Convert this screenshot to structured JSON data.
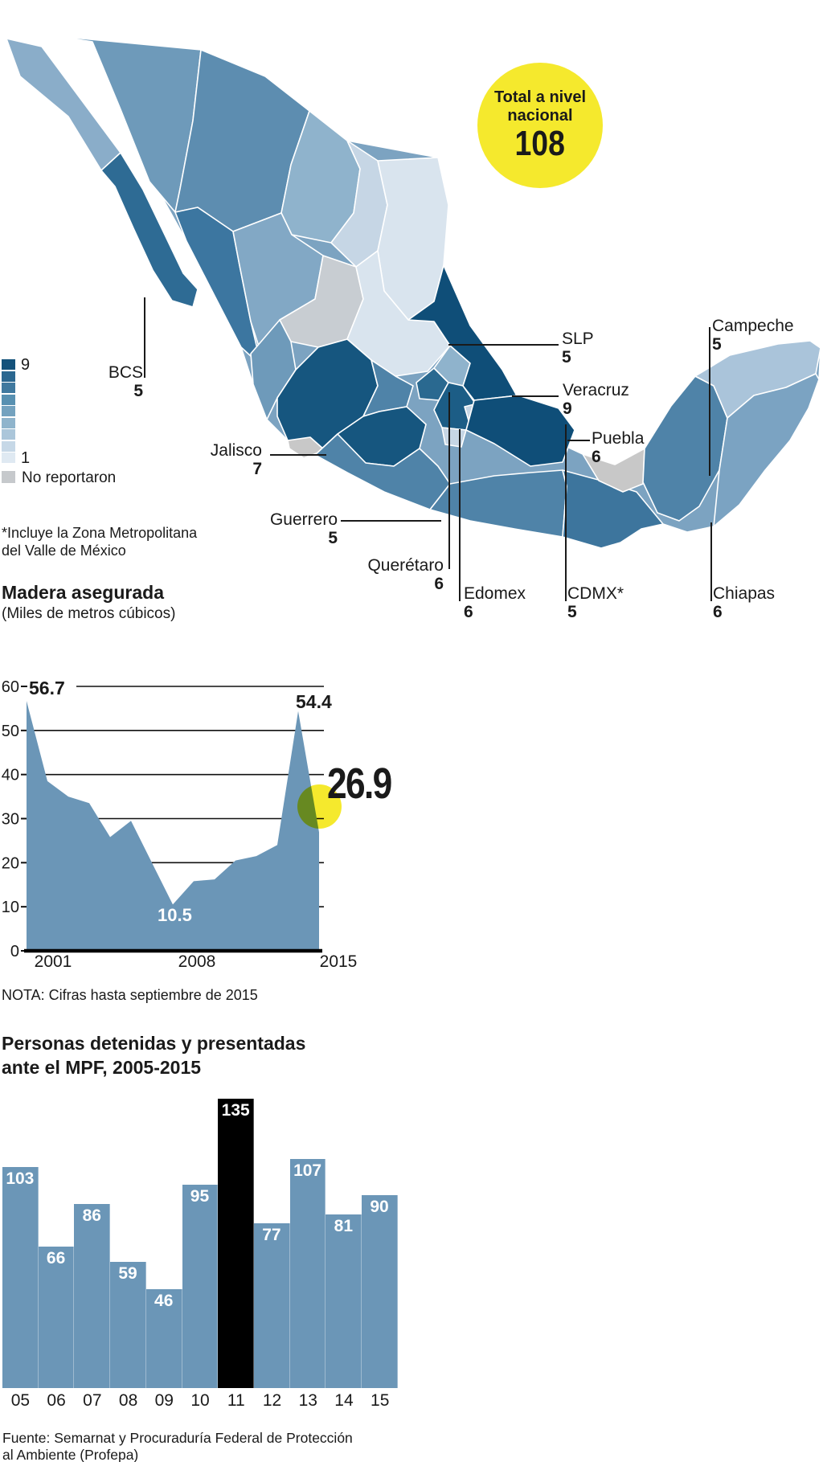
{
  "badge": {
    "line1": "Total a nivel",
    "line2": "nacional",
    "value": "108"
  },
  "map": {
    "legend": {
      "max_label": "9",
      "min_label": "1",
      "colors": [
        "#14527b",
        "#2b6790",
        "#40799f",
        "#5890b1",
        "#74a2bf",
        "#8fb4cc",
        "#abc6da",
        "#c6d8e7",
        "#dfe9f2"
      ],
      "no_data_color": "#c6c9cc",
      "no_data_label": "No reportaron"
    },
    "footnote_line1": "*Incluye la Zona Metropolitana",
    "footnote_line2": "del Valle de México",
    "labels": [
      {
        "name": "BCS",
        "value": "5"
      },
      {
        "name": "Jalisco",
        "value": "7"
      },
      {
        "name": "Guerrero",
        "value": "5"
      },
      {
        "name": "Querétaro",
        "value": "6"
      },
      {
        "name": "Edomex",
        "value": "6"
      },
      {
        "name": "CDMX*",
        "value": "5"
      },
      {
        "name": "SLP",
        "value": "5"
      },
      {
        "name": "Veracruz",
        "value": "9"
      },
      {
        "name": "Puebla",
        "value": "6"
      },
      {
        "name": "Campeche",
        "value": "5"
      },
      {
        "name": "Chiapas",
        "value": "6"
      }
    ],
    "state_colors": {
      "base": "#7ca3c1",
      "bc": "#8aadc9",
      "bcs": "#2e6b94",
      "sonora": "#6e9aba",
      "chihuahua": "#5d8db0",
      "coahuila": "#8fb3cc",
      "nuevo_leon": "#c6d6e5",
      "tamaulipas": "#d9e4ee",
      "sinaloa": "#3c76a0",
      "durango": "#82a8c5",
      "zacatecas": "#c8cdd2",
      "slp": "#d9e4ee",
      "nayarit": "#6e9aba",
      "jalisco": "#16567f",
      "colima": "#c8c8c8",
      "guanajuato": "#4f83a8",
      "michoacan": "#16567f",
      "queretaro": "#2a6990",
      "hidalgo": "#8fb3cc",
      "edomex": "#1c5d86",
      "cdmx": "#c6d6e5",
      "morelos": "#c6d6e5",
      "tlaxcala": "#abc6da",
      "puebla": "#0f4e78",
      "veracruz": "#0f4e78",
      "guerrero": "#4f83a8",
      "oaxaca": "#4f83a8",
      "chiapas": "#3d759d",
      "tabasco": "#c8c8c8",
      "campeche": "#4f83a8",
      "yucatan": "#aac4da",
      "qroo": "#7ba3c2"
    }
  },
  "area_title": "Madera asegurada",
  "area_subtitle": "(Miles de metros cúbicos)",
  "nota": "NOTA: Cifras hasta septiembre de 2015",
  "bar_title_line1": "Personas detenidas y presentadas",
  "bar_title_line2": "ante el MPF, 2005-2015",
  "fuente_line1": "Fuente: Semarnat y Procuraduría Federal de Protección",
  "fuente_line2": "al Ambiente (Profepa)",
  "annotations": {
    "start": "56.7",
    "peak": "54.4",
    "min": "10.5",
    "last": "26.9"
  },
  "colors": {
    "steel_blue": "#6b96b7",
    "yellow": "#f5e92d",
    "black": "#000000",
    "ink": "#1a1a1a"
  },
  "chart_data": [
    {
      "type": "choropleth-map",
      "title": "Total a nivel nacional",
      "total": 108,
      "legend_range": [
        1,
        9
      ],
      "no_data": "No reportaron",
      "labeled_states": [
        {
          "state": "BCS",
          "value": 5
        },
        {
          "state": "Jalisco",
          "value": 7
        },
        {
          "state": "Guerrero",
          "value": 5
        },
        {
          "state": "Querétaro",
          "value": 6
        },
        {
          "state": "Edomex",
          "value": 6
        },
        {
          "state": "CDMX*",
          "value": 5
        },
        {
          "state": "SLP",
          "value": 5
        },
        {
          "state": "Veracruz",
          "value": 9
        },
        {
          "state": "Puebla",
          "value": 6
        },
        {
          "state": "Campeche",
          "value": 5
        },
        {
          "state": "Chiapas",
          "value": 6
        }
      ]
    },
    {
      "type": "area",
      "title": "Madera asegurada (Miles de metros cúbicos)",
      "x": [
        2001,
        2002,
        2003,
        2004,
        2005,
        2006,
        2007,
        2008,
        2009,
        2010,
        2011,
        2012,
        2013,
        2014,
        2015
      ],
      "values": [
        56.7,
        38.5,
        35,
        33.5,
        25.8,
        29.5,
        20,
        10.5,
        15.8,
        16.2,
        20.5,
        21.5,
        24,
        54.4,
        26.9
      ],
      "ylim": [
        0,
        60
      ],
      "y_ticks": [
        0,
        10,
        20,
        30,
        40,
        50,
        60
      ],
      "x_tick_labels": [
        "2001",
        "2008",
        "2015"
      ],
      "annotations": {
        "2001": 56.7,
        "2008": 10.5,
        "2014": 54.4,
        "2015": 26.9
      },
      "grid": true
    },
    {
      "type": "bar",
      "title": "Personas detenidas y presentadas ante el MPF, 2005-2015",
      "categories": [
        "05",
        "06",
        "07",
        "08",
        "09",
        "10",
        "11",
        "12",
        "13",
        "14",
        "15"
      ],
      "values": [
        103,
        66,
        86,
        59,
        46,
        95,
        135,
        77,
        107,
        81,
        90
      ],
      "highlight_category": "11",
      "highlight_index": 6,
      "ylim": [
        0,
        135
      ]
    }
  ]
}
